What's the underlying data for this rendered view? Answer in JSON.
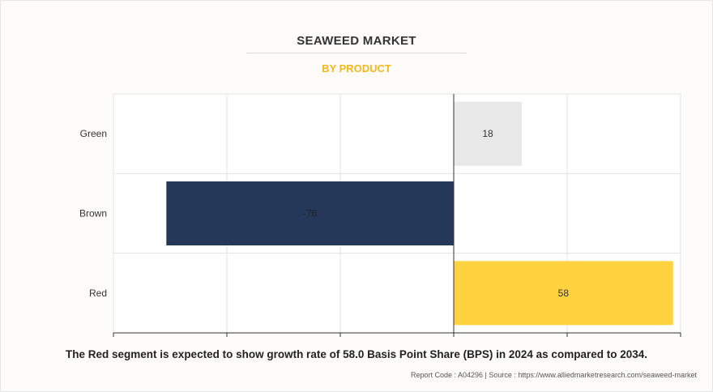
{
  "header": {
    "title": "SEAWEED MARKET",
    "subtitle": "BY PRODUCT"
  },
  "chart_data": {
    "type": "bar",
    "orientation": "horizontal",
    "categories": [
      "Green",
      "Brown",
      "Red"
    ],
    "values": [
      18,
      -76,
      58
    ],
    "data_labels": [
      "18",
      "-76",
      "58"
    ],
    "xlim": [
      -90,
      60
    ],
    "grid": true,
    "colors": [
      "#e8e8e8",
      "#263859",
      "#ffd23f"
    ],
    "label_colors": [
      "#333333",
      "#222222",
      "#333333"
    ]
  },
  "footer": {
    "caption": "The Red segment is expected to show growth rate of 58.0 Basis Point Share (BPS) in 2024 as compared to 2034.",
    "source": "Report Code : A04296  |  Source : https://www.alliedmarketresearch.com/seaweed-market"
  }
}
